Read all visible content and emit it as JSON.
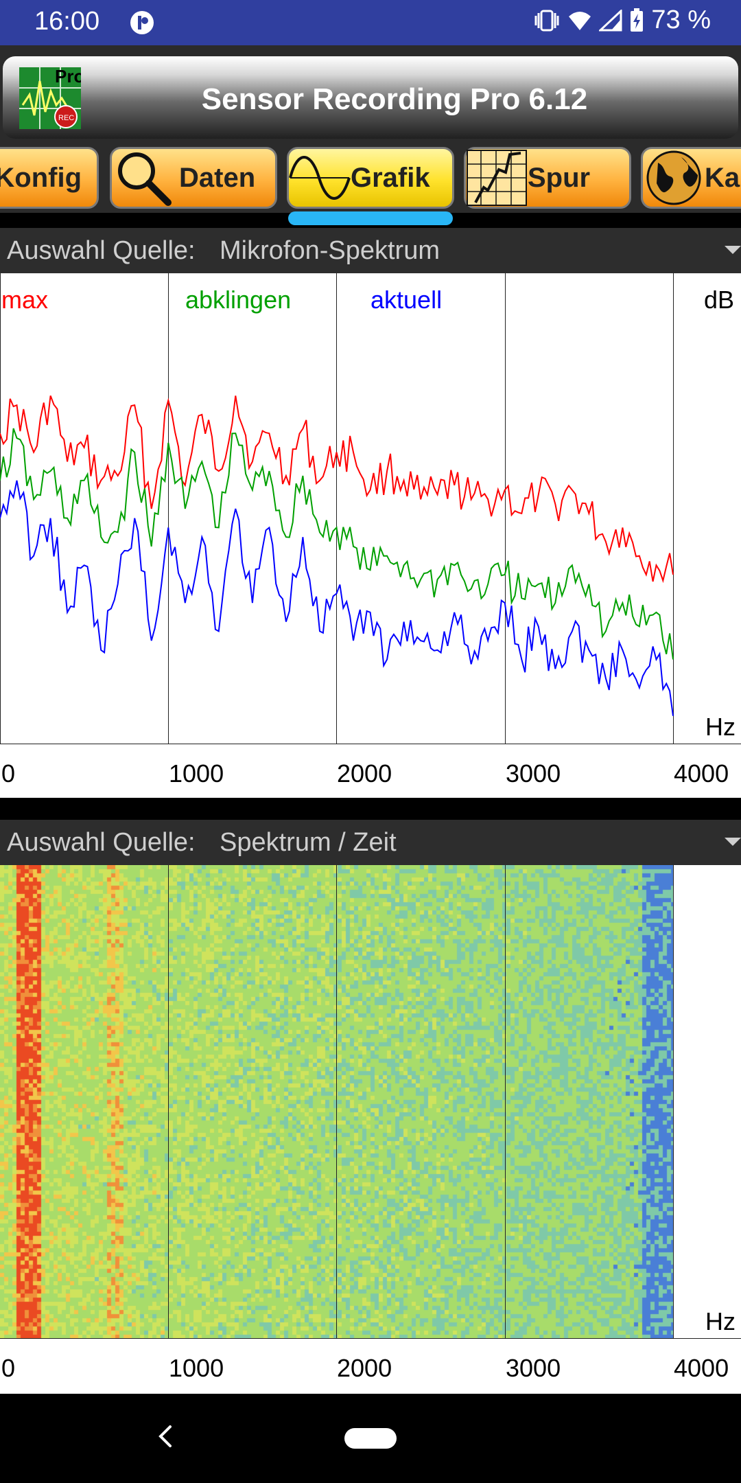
{
  "status": {
    "time": "16:00",
    "battery": "73 %"
  },
  "app": {
    "title": "Sensor Recording Pro 6.12",
    "logo_text": "Pro",
    "logo_badge": "REC"
  },
  "tabs": [
    {
      "label": "Konfig",
      "icon": "config-icon"
    },
    {
      "label": "Daten",
      "icon": "magnifier-icon"
    },
    {
      "label": "Grafik",
      "icon": "sine-wave-icon",
      "active": true
    },
    {
      "label": "Spur",
      "icon": "track-grid-icon"
    },
    {
      "label": "Ka",
      "icon": "globe-icon"
    }
  ],
  "spectrum_panel": {
    "source_label": "Auswahl Quelle:",
    "source_value": "Mikrofon-Spektrum",
    "legend": {
      "max": "max",
      "decay": "abklingen",
      "current": "aktuell"
    },
    "y_unit": "dB",
    "x_unit": "Hz",
    "colors": {
      "max": "#ff0000",
      "decay": "#00a000",
      "current": "#0000ff"
    }
  },
  "spectrogram_panel": {
    "source_label": "Auswahl Quelle:",
    "source_value": "Spektrum / Zeit",
    "x_unit": "Hz"
  },
  "chart_data": [
    {
      "type": "line",
      "xlabel": "Hz",
      "ylabel": "dB",
      "xlim": [
        0,
        4000
      ],
      "x_ticks": [
        "0",
        "1000",
        "2000",
        "3000",
        "4000"
      ],
      "legend": [
        "max",
        "abklingen",
        "aktuell"
      ],
      "x": [
        0,
        100,
        200,
        300,
        400,
        500,
        600,
        700,
        800,
        900,
        1000,
        1100,
        1200,
        1300,
        1400,
        1500,
        1600,
        1700,
        1800,
        1900,
        2000,
        2100,
        2200,
        2300,
        2400,
        2500,
        2600,
        2700,
        2800,
        2900,
        3000,
        3100,
        3200,
        3300,
        3400,
        3500,
        3600,
        3700,
        3800,
        3900,
        4000
      ],
      "series": [
        {
          "name": "max",
          "color": "#ff0000",
          "values": [
            0.66,
            0.72,
            0.62,
            0.74,
            0.6,
            0.63,
            0.56,
            0.57,
            0.72,
            0.5,
            0.73,
            0.55,
            0.7,
            0.58,
            0.74,
            0.6,
            0.66,
            0.57,
            0.67,
            0.56,
            0.62,
            0.62,
            0.54,
            0.58,
            0.56,
            0.52,
            0.53,
            0.55,
            0.52,
            0.52,
            0.54,
            0.49,
            0.53,
            0.51,
            0.54,
            0.49,
            0.43,
            0.46,
            0.4,
            0.38,
            0.36
          ]
        },
        {
          "name": "abklingen",
          "color": "#00a000",
          "values": [
            0.56,
            0.65,
            0.52,
            0.58,
            0.48,
            0.56,
            0.44,
            0.45,
            0.62,
            0.42,
            0.64,
            0.5,
            0.6,
            0.46,
            0.66,
            0.54,
            0.58,
            0.44,
            0.57,
            0.45,
            0.46,
            0.42,
            0.37,
            0.4,
            0.38,
            0.35,
            0.35,
            0.38,
            0.33,
            0.34,
            0.36,
            0.31,
            0.34,
            0.3,
            0.38,
            0.34,
            0.24,
            0.3,
            0.25,
            0.28,
            0.18
          ]
        },
        {
          "name": "aktuell",
          "color": "#0000ff",
          "values": [
            0.48,
            0.56,
            0.4,
            0.48,
            0.28,
            0.38,
            0.2,
            0.34,
            0.48,
            0.22,
            0.46,
            0.3,
            0.44,
            0.24,
            0.5,
            0.3,
            0.46,
            0.26,
            0.44,
            0.24,
            0.32,
            0.22,
            0.28,
            0.18,
            0.26,
            0.22,
            0.2,
            0.28,
            0.17,
            0.22,
            0.3,
            0.18,
            0.25,
            0.16,
            0.24,
            0.2,
            0.14,
            0.2,
            0.12,
            0.18,
            0.06
          ]
        }
      ]
    },
    {
      "type": "heatmap",
      "xlabel": "Hz",
      "xlim": [
        0,
        4000
      ],
      "x_ticks": [
        "0",
        "1000",
        "2000",
        "3000",
        "4000"
      ]
    }
  ]
}
